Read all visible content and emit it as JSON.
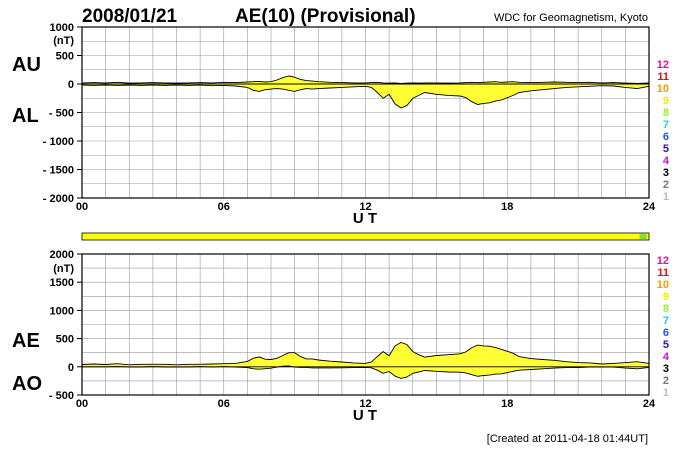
{
  "header": {
    "date": "2008/01/21",
    "title": "AE(10) (Provisional)",
    "source": "WDC for Geomagnetism, Kyoto"
  },
  "footer": {
    "created": "[Created at 2011-04-18 01:44UT]"
  },
  "colors": {
    "fill": "#ffff33",
    "band": "#ffff00",
    "band_marker": "#88dd33",
    "grid": "#999999",
    "line": "#000000"
  },
  "station_scale": [
    {
      "label": "12",
      "color": "#ee1188"
    },
    {
      "label": "11",
      "color": "#dd1111"
    },
    {
      "label": "10",
      "color": "#ff9900"
    },
    {
      "label": "9",
      "color": "#eeee00"
    },
    {
      "label": "8",
      "color": "#99ee22"
    },
    {
      "label": "7",
      "color": "#22ccdd"
    },
    {
      "label": "6",
      "color": "#2255ee"
    },
    {
      "label": "5",
      "color": "#331199"
    },
    {
      "label": "4",
      "color": "#cc11cc"
    },
    {
      "label": "3",
      "color": "#000000"
    },
    {
      "label": "2",
      "color": "#777777"
    },
    {
      "label": "1",
      "color": "#bbbbbb"
    }
  ],
  "station_band": {
    "value": 10,
    "marker_hours": [
      23.6,
      23.9
    ]
  },
  "chart_data": [
    {
      "type": "area",
      "series_labels": [
        "AU",
        "AL"
      ],
      "unit": "(nT)",
      "xlabel": "U T",
      "xlim": [
        0,
        24
      ],
      "xticks": [
        "00",
        "06",
        "12",
        "18",
        "24"
      ],
      "ylim": [
        -2000,
        1000
      ],
      "yticks": [
        1000,
        500,
        0,
        -500,
        -1000,
        -1500,
        -2000
      ],
      "ytick_labels": [
        "1000",
        "500",
        "0",
        "- 500",
        "- 1000",
        "- 1500",
        "- 2000"
      ],
      "grid": true,
      "x": [
        0,
        0.5,
        1,
        1.5,
        2,
        2.5,
        3,
        3.5,
        4,
        4.5,
        5,
        5.5,
        6,
        6.5,
        7,
        7.25,
        7.5,
        7.75,
        8,
        8.25,
        8.5,
        8.75,
        9,
        9.25,
        9.5,
        9.75,
        10,
        10.5,
        11,
        11.5,
        12,
        12.25,
        12.5,
        12.75,
        13,
        13.25,
        13.5,
        13.75,
        14,
        14.25,
        14.5,
        15,
        15.5,
        16,
        16.25,
        16.5,
        16.75,
        17,
        17.25,
        17.5,
        17.75,
        18,
        18.25,
        18.5,
        19,
        19.5,
        20,
        20.5,
        21,
        21.5,
        22,
        22.5,
        23,
        23.5,
        24
      ],
      "series": [
        {
          "values": [
            20,
            25,
            20,
            30,
            15,
            20,
            25,
            20,
            15,
            20,
            25,
            20,
            30,
            25,
            35,
            40,
            45,
            35,
            40,
            70,
            110,
            140,
            120,
            80,
            60,
            50,
            40,
            30,
            25,
            20,
            20,
            25,
            30,
            20,
            15,
            20,
            10,
            15,
            20,
            15,
            20,
            20,
            15,
            20,
            25,
            30,
            25,
            30,
            35,
            40,
            30,
            35,
            40,
            30,
            25,
            30,
            35,
            30,
            25,
            30,
            20,
            25,
            15,
            10,
            20
          ]
        },
        {
          "values": [
            -20,
            -25,
            -20,
            -25,
            -20,
            -25,
            -20,
            -25,
            -20,
            -25,
            -20,
            -30,
            -25,
            -35,
            -60,
            -110,
            -130,
            -100,
            -90,
            -80,
            -90,
            -110,
            -130,
            -100,
            -80,
            -90,
            -80,
            -70,
            -60,
            -50,
            -40,
            -60,
            -150,
            -250,
            -180,
            -350,
            -420,
            -380,
            -250,
            -200,
            -150,
            -180,
            -200,
            -210,
            -240,
            -310,
            -360,
            -340,
            -330,
            -300,
            -280,
            -240,
            -200,
            -150,
            -120,
            -100,
            -80,
            -60,
            -50,
            -40,
            -30,
            -35,
            -60,
            -80,
            -40
          ]
        }
      ]
    },
    {
      "type": "area",
      "series_labels": [
        "AE",
        "AO"
      ],
      "unit": "(nT)",
      "xlabel": "U T",
      "xlim": [
        0,
        24
      ],
      "xticks": [
        "00",
        "06",
        "12",
        "18",
        "24"
      ],
      "ylim": [
        -500,
        2000
      ],
      "yticks": [
        2000,
        1500,
        1000,
        500,
        0,
        -500
      ],
      "ytick_labels": [
        "2000",
        "1500",
        "1000",
        "500",
        "0",
        "- 500"
      ],
      "grid": true,
      "x": [
        0,
        0.5,
        1,
        1.5,
        2,
        2.5,
        3,
        3.5,
        4,
        4.5,
        5,
        5.5,
        6,
        6.5,
        7,
        7.25,
        7.5,
        7.75,
        8,
        8.25,
        8.5,
        8.75,
        9,
        9.25,
        9.5,
        9.75,
        10,
        10.5,
        11,
        11.5,
        12,
        12.25,
        12.5,
        12.75,
        13,
        13.25,
        13.5,
        13.75,
        14,
        14.25,
        14.5,
        15,
        15.5,
        16,
        16.25,
        16.5,
        16.75,
        17,
        17.25,
        17.5,
        17.75,
        18,
        18.25,
        18.5,
        19,
        19.5,
        20,
        20.5,
        21,
        21.5,
        22,
        22.5,
        23,
        23.5,
        24
      ],
      "series": [
        {
          "values": [
            40,
            50,
            40,
            55,
            35,
            45,
            45,
            45,
            35,
            45,
            45,
            50,
            55,
            60,
            95,
            150,
            175,
            135,
            130,
            150,
            200,
            250,
            250,
            180,
            140,
            140,
            120,
            100,
            85,
            70,
            60,
            85,
            180,
            270,
            195,
            370,
            430,
            395,
            270,
            215,
            170,
            200,
            215,
            230,
            265,
            340,
            385,
            370,
            365,
            340,
            310,
            275,
            240,
            180,
            145,
            130,
            115,
            90,
            75,
            70,
            50,
            60,
            75,
            90,
            60
          ]
        },
        {
          "values": [
            0,
            0,
            0,
            3,
            -3,
            -3,
            3,
            -3,
            -3,
            -3,
            3,
            -5,
            3,
            -5,
            -13,
            -35,
            -43,
            -33,
            -25,
            -5,
            10,
            15,
            -5,
            -10,
            -10,
            -20,
            -20,
            -20,
            -18,
            -15,
            -10,
            -18,
            -60,
            -115,
            -83,
            -165,
            -205,
            -183,
            -115,
            -93,
            -65,
            -80,
            -93,
            -95,
            -108,
            -140,
            -168,
            -155,
            -148,
            -130,
            -125,
            -103,
            -80,
            -60,
            -48,
            -35,
            -23,
            -15,
            -13,
            -5,
            -5,
            -5,
            -23,
            -35,
            -10
          ]
        }
      ]
    }
  ]
}
